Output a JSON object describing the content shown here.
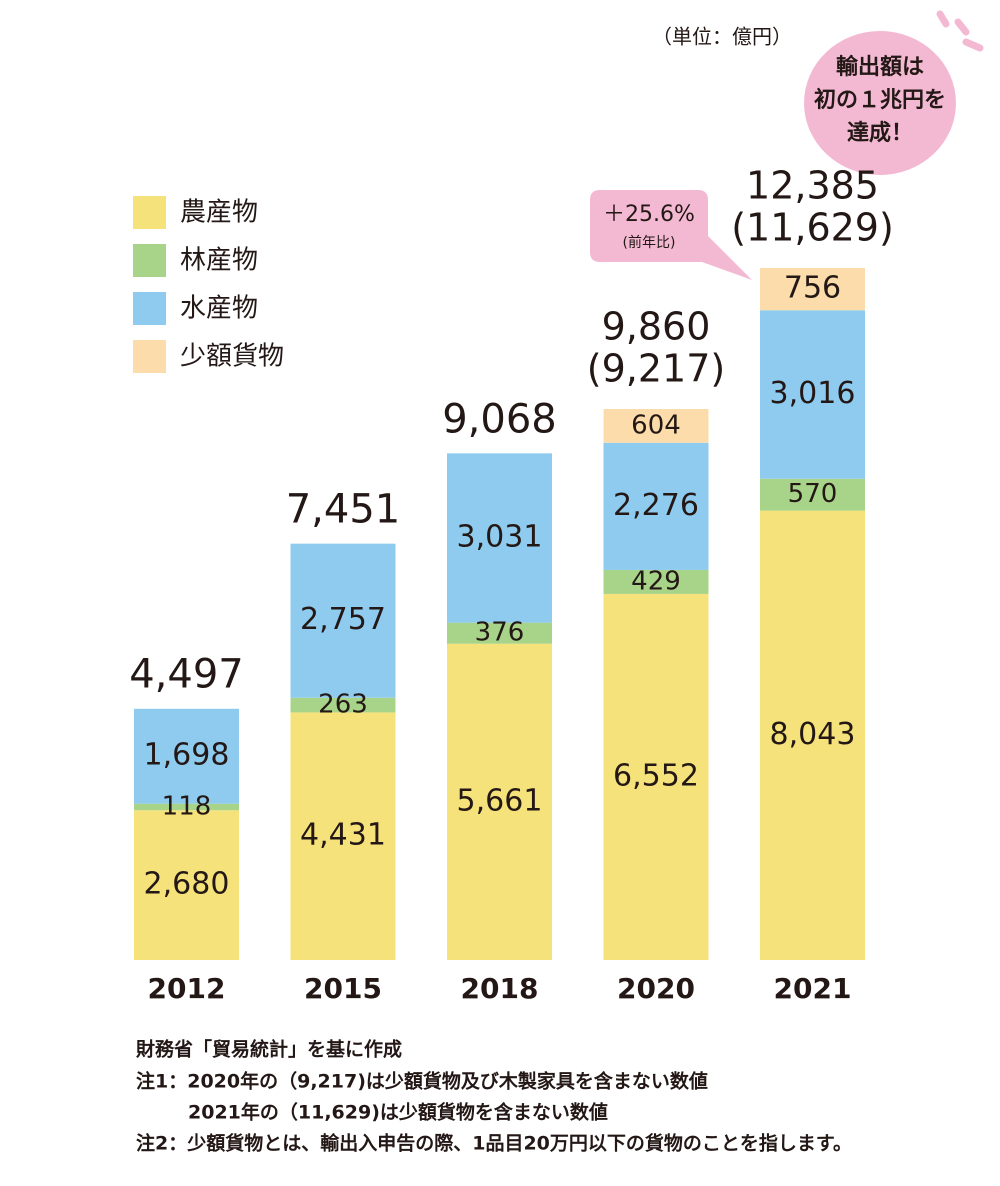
{
  "chart_data": {
    "type": "bar",
    "stacked": true,
    "unit": "（単位：億円）",
    "categories": [
      "2012",
      "2015",
      "2018",
      "2020",
      "2021"
    ],
    "series": [
      {
        "name": "農産物",
        "color": "#f6e27a",
        "values": [
          2680,
          4431,
          5661,
          6552,
          8043
        ],
        "value_labels": [
          "2,680",
          "4,431",
          "5,661",
          "6,552",
          "8,043"
        ]
      },
      {
        "name": "林産物",
        "color": "#a8d48a",
        "values": [
          118,
          263,
          376,
          429,
          570
        ],
        "value_labels": [
          "118",
          "263",
          "376",
          "429",
          "570"
        ]
      },
      {
        "name": "水産物",
        "color": "#8ecbef",
        "values": [
          1698,
          2757,
          3031,
          2276,
          3016
        ],
        "value_labels": [
          "1,698",
          "2,757",
          "3,031",
          "2,276",
          "3,016"
        ]
      },
      {
        "name": "少額貨物",
        "color": "#fbdcaa",
        "values": [
          null,
          null,
          null,
          604,
          756
        ],
        "value_labels": [
          null,
          null,
          null,
          "604",
          "756"
        ]
      }
    ],
    "totals": [
      {
        "value": 4497,
        "label": "4,497"
      },
      {
        "value": 7451,
        "label": "7,451"
      },
      {
        "value": 9068,
        "label": "9,068"
      },
      {
        "value": 9860,
        "label": "9,860"
      },
      {
        "value": 12385,
        "label": "12,385"
      }
    ],
    "excluding_small_goods": [
      null,
      null,
      null,
      {
        "value": 9217,
        "label": "(9,217)"
      },
      {
        "value": 11629,
        "label": "(11,629)"
      }
    ],
    "growth": {
      "value": 25.6,
      "label": "＋25.6%",
      "note": "(前年比)"
    },
    "callout": [
      "輸出額は",
      "初の１兆円を",
      "達成！"
    ],
    "source": "財務省「貿易統計」を基に作成",
    "notes": [
      "注1：2020年の（9,217)は少額貨物及び木製家具を含まない数値",
      "2021年の（11,629)は少額貨物を含まない数値",
      "注2：少額貨物とは、輸出入申告の際、1品目20万円以下の貨物のことを指します。"
    ]
  }
}
